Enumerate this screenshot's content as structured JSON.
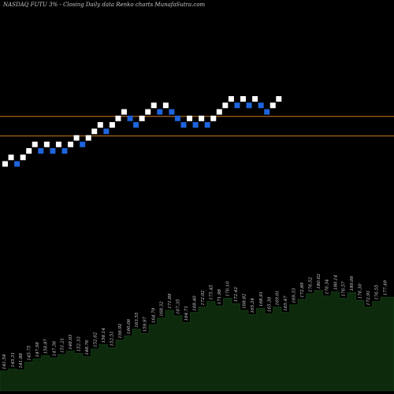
{
  "header": {
    "title": "NASDAQ FUTU  3% -  Closing Daily data  Renko  charts MunafaSutra.com"
  },
  "colors": {
    "background": "#000000",
    "up_brick": "#ffffff",
    "down_brick": "#1e64dc",
    "support_line": "#c8781e",
    "volume_fill": "#0d2a0d",
    "volume_stroke": "#000000"
  },
  "chart_data": [
    {
      "type": "renko",
      "bricks": [
        {
          "i": 0,
          "level": 0,
          "dir": "up"
        },
        {
          "i": 1,
          "level": 1,
          "dir": "up"
        },
        {
          "i": 2,
          "level": 0,
          "dir": "down"
        },
        {
          "i": 3,
          "level": 1,
          "dir": "up"
        },
        {
          "i": 4,
          "level": 2,
          "dir": "up"
        },
        {
          "i": 5,
          "level": 3,
          "dir": "up"
        },
        {
          "i": 6,
          "level": 2,
          "dir": "down"
        },
        {
          "i": 7,
          "level": 3,
          "dir": "up"
        },
        {
          "i": 8,
          "level": 2,
          "dir": "down"
        },
        {
          "i": 9,
          "level": 3,
          "dir": "up"
        },
        {
          "i": 10,
          "level": 2,
          "dir": "down"
        },
        {
          "i": 11,
          "level": 3,
          "dir": "up"
        },
        {
          "i": 12,
          "level": 4,
          "dir": "up"
        },
        {
          "i": 13,
          "level": 3,
          "dir": "down"
        },
        {
          "i": 14,
          "level": 4,
          "dir": "up"
        },
        {
          "i": 15,
          "level": 5,
          "dir": "up"
        },
        {
          "i": 16,
          "level": 6,
          "dir": "up"
        },
        {
          "i": 17,
          "level": 5,
          "dir": "down"
        },
        {
          "i": 18,
          "level": 6,
          "dir": "up"
        },
        {
          "i": 19,
          "level": 7,
          "dir": "up"
        },
        {
          "i": 20,
          "level": 8,
          "dir": "up"
        },
        {
          "i": 21,
          "level": 7,
          "dir": "down"
        },
        {
          "i": 22,
          "level": 6,
          "dir": "down"
        },
        {
          "i": 23,
          "level": 7,
          "dir": "up"
        },
        {
          "i": 24,
          "level": 8,
          "dir": "up"
        },
        {
          "i": 25,
          "level": 9,
          "dir": "up"
        },
        {
          "i": 26,
          "level": 8,
          "dir": "down"
        },
        {
          "i": 27,
          "level": 9,
          "dir": "up"
        },
        {
          "i": 28,
          "level": 8,
          "dir": "down"
        },
        {
          "i": 29,
          "level": 7,
          "dir": "down"
        },
        {
          "i": 30,
          "level": 6,
          "dir": "down"
        },
        {
          "i": 31,
          "level": 7,
          "dir": "up"
        },
        {
          "i": 32,
          "level": 6,
          "dir": "down"
        },
        {
          "i": 33,
          "level": 7,
          "dir": "up"
        },
        {
          "i": 34,
          "level": 6,
          "dir": "down"
        },
        {
          "i": 35,
          "level": 7,
          "dir": "up"
        },
        {
          "i": 36,
          "level": 8,
          "dir": "up"
        },
        {
          "i": 37,
          "level": 9,
          "dir": "up"
        },
        {
          "i": 38,
          "level": 10,
          "dir": "up"
        },
        {
          "i": 39,
          "level": 9,
          "dir": "down"
        },
        {
          "i": 40,
          "level": 10,
          "dir": "up"
        },
        {
          "i": 41,
          "level": 9,
          "dir": "down"
        },
        {
          "i": 42,
          "level": 10,
          "dir": "up"
        },
        {
          "i": 43,
          "level": 9,
          "dir": "down"
        },
        {
          "i": 44,
          "level": 8,
          "dir": "down"
        },
        {
          "i": 45,
          "level": 9,
          "dir": "up"
        },
        {
          "i": 46,
          "level": 10,
          "dir": "up"
        }
      ],
      "support_lines": [
        7.3,
        4.3
      ],
      "volume": [
        {
          "v": 1.8,
          "label": "141.54"
        },
        {
          "v": 2.0,
          "label": "145.31"
        },
        {
          "v": 1.9,
          "label": "141.88"
        },
        {
          "v": 2.6,
          "label": "145.75"
        },
        {
          "v": 2.9,
          "label": "147.58"
        },
        {
          "v": 3.2,
          "label": "150.97"
        },
        {
          "v": 3.0,
          "label": "147.36"
        },
        {
          "v": 3.3,
          "label": "151.21"
        },
        {
          "v": 3.6,
          "label": "148.03"
        },
        {
          "v": 3.4,
          "label": "152.33"
        },
        {
          "v": 3.1,
          "label": "148.76"
        },
        {
          "v": 3.8,
          "label": "152.62"
        },
        {
          "v": 4.2,
          "label": "156.14"
        },
        {
          "v": 3.9,
          "label": "152.51"
        },
        {
          "v": 4.6,
          "label": "156.92"
        },
        {
          "v": 5.0,
          "label": "160.06"
        },
        {
          "v": 5.6,
          "label": "163.55"
        },
        {
          "v": 5.2,
          "label": "159.97"
        },
        {
          "v": 6.0,
          "label": "164.79"
        },
        {
          "v": 6.6,
          "label": "168.32"
        },
        {
          "v": 7.3,
          "label": "171.89"
        },
        {
          "v": 6.8,
          "label": "167.35"
        },
        {
          "v": 6.2,
          "label": "164.71"
        },
        {
          "v": 7.1,
          "label": "168.40"
        },
        {
          "v": 7.6,
          "label": "172.02"
        },
        {
          "v": 8.1,
          "label": "175.45"
        },
        {
          "v": 7.7,
          "label": "171.98"
        },
        {
          "v": 8.4,
          "label": "176.10"
        },
        {
          "v": 7.9,
          "label": "172.42"
        },
        {
          "v": 7.3,
          "label": "168.82"
        },
        {
          "v": 6.9,
          "label": "165.24"
        },
        {
          "v": 7.5,
          "label": "168.91"
        },
        {
          "v": 7.0,
          "label": "165.30"
        },
        {
          "v": 7.6,
          "label": "169.01"
        },
        {
          "v": 7.1,
          "label": "165.47"
        },
        {
          "v": 7.8,
          "label": "169.33"
        },
        {
          "v": 8.3,
          "label": "172.89"
        },
        {
          "v": 8.8,
          "label": "176.52"
        },
        {
          "v": 9.1,
          "label": "180.02"
        },
        {
          "v": 8.6,
          "label": "176.34"
        },
        {
          "v": 9.0,
          "label": "180.14"
        },
        {
          "v": 8.4,
          "label": "176.57"
        },
        {
          "v": 8.9,
          "label": "180.06"
        },
        {
          "v": 8.2,
          "label": "176.30"
        },
        {
          "v": 7.6,
          "label": "172.91"
        },
        {
          "v": 8.1,
          "label": "176.55"
        },
        {
          "v": 8.5,
          "label": "177.49"
        }
      ]
    }
  ]
}
